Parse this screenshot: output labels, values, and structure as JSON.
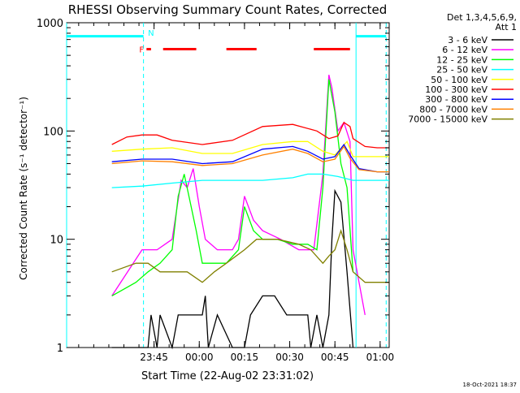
{
  "chart_data": {
    "type": "line",
    "title": "RHESSI Observing Summary Count Rates, Corrected",
    "xlabel": "Start Time (22-Aug-02 23:31:02)",
    "ylabel": "Corrected Count Rate (s⁻¹ detector⁻¹)",
    "y_scale": "log",
    "ylim": [
      1,
      1000
    ],
    "xlim": [
      -15,
      92
    ],
    "x_ticks": [
      {
        "t": 14,
        "label": "23:45"
      },
      {
        "t": 29,
        "label": "00:00"
      },
      {
        "t": 44,
        "label": "00:15"
      },
      {
        "t": 59,
        "label": "00:30"
      },
      {
        "t": 74,
        "label": "00:45"
      },
      {
        "t": 89,
        "label": "01:00"
      }
    ],
    "y_ticks": [
      {
        "v": 1,
        "label": "1"
      },
      {
        "v": 10,
        "label": "10"
      },
      {
        "v": 100,
        "label": "100"
      },
      {
        "v": 1000,
        "label": "1000"
      }
    ],
    "legend_header": [
      "Det 1,3,4,5,6,9,",
      "Att 1"
    ],
    "legend_position": "right",
    "series": [
      {
        "name": "3 - 6 keV",
        "color": "#000000",
        "points": [
          [
            0,
            1
          ],
          [
            12,
            1
          ],
          [
            13,
            2
          ],
          [
            15,
            1
          ],
          [
            16,
            2
          ],
          [
            20,
            1
          ],
          [
            22,
            2
          ],
          [
            30,
            2
          ],
          [
            31,
            3
          ],
          [
            32,
            1
          ],
          [
            35,
            2
          ],
          [
            40,
            1
          ],
          [
            44,
            1
          ],
          [
            46,
            2
          ],
          [
            50,
            3
          ],
          [
            54,
            3
          ],
          [
            58,
            2
          ],
          [
            62,
            2
          ],
          [
            65,
            2
          ],
          [
            66,
            1
          ],
          [
            68,
            2
          ],
          [
            70,
            1
          ],
          [
            72,
            2
          ],
          [
            73,
            10
          ],
          [
            74,
            28
          ],
          [
            76,
            22
          ],
          [
            78,
            5
          ],
          [
            80,
            1
          ]
        ]
      },
      {
        "name": "6 - 12 keV",
        "color": "#ff00ff",
        "points": [
          [
            0,
            3
          ],
          [
            10,
            8
          ],
          [
            12,
            8
          ],
          [
            15,
            8
          ],
          [
            20,
            10
          ],
          [
            23,
            35
          ],
          [
            25,
            30
          ],
          [
            27,
            45
          ],
          [
            29,
            20
          ],
          [
            31,
            10
          ],
          [
            35,
            8
          ],
          [
            40,
            8
          ],
          [
            42,
            10
          ],
          [
            44,
            25
          ],
          [
            47,
            15
          ],
          [
            50,
            12
          ],
          [
            56,
            10
          ],
          [
            62,
            8
          ],
          [
            67,
            8
          ],
          [
            70,
            40
          ],
          [
            72,
            330
          ],
          [
            73,
            250
          ],
          [
            75,
            100
          ],
          [
            77,
            120
          ],
          [
            79,
            80
          ],
          [
            80,
            8
          ],
          [
            82,
            4
          ],
          [
            84,
            2
          ]
        ]
      },
      {
        "name": "12 - 25 keV",
        "color": "#00ff00",
        "points": [
          [
            0,
            3
          ],
          [
            8,
            4
          ],
          [
            12,
            5
          ],
          [
            16,
            6
          ],
          [
            20,
            8
          ],
          [
            22,
            25
          ],
          [
            24,
            40
          ],
          [
            26,
            22
          ],
          [
            28,
            12
          ],
          [
            30,
            6
          ],
          [
            34,
            6
          ],
          [
            38,
            6
          ],
          [
            42,
            8
          ],
          [
            44,
            20
          ],
          [
            47,
            12
          ],
          [
            50,
            10
          ],
          [
            55,
            10
          ],
          [
            60,
            9
          ],
          [
            65,
            9
          ],
          [
            68,
            8
          ],
          [
            70,
            30
          ],
          [
            72,
            300
          ],
          [
            74,
            150
          ],
          [
            76,
            50
          ],
          [
            78,
            30
          ],
          [
            80,
            5
          ]
        ]
      },
      {
        "name": "25 - 50 keV",
        "color": "#00ffff",
        "points": [
          [
            0,
            30
          ],
          [
            10,
            31
          ],
          [
            20,
            33
          ],
          [
            30,
            35
          ],
          [
            40,
            35
          ],
          [
            50,
            35
          ],
          [
            60,
            37
          ],
          [
            65,
            40
          ],
          [
            70,
            40
          ],
          [
            75,
            38
          ],
          [
            80,
            35
          ],
          [
            88,
            35
          ],
          [
            92,
            35
          ]
        ]
      },
      {
        "name": "50 - 100 keV",
        "color": "#ffff00",
        "points": [
          [
            0,
            65
          ],
          [
            10,
            68
          ],
          [
            20,
            70
          ],
          [
            30,
            62
          ],
          [
            40,
            62
          ],
          [
            50,
            75
          ],
          [
            60,
            80
          ],
          [
            65,
            80
          ],
          [
            70,
            65
          ],
          [
            74,
            60
          ],
          [
            78,
            80
          ],
          [
            80,
            58
          ],
          [
            88,
            58
          ],
          [
            92,
            58
          ]
        ]
      },
      {
        "name": "100 - 300 keV",
        "color": "#ff0000",
        "points": [
          [
            0,
            75
          ],
          [
            5,
            88
          ],
          [
            10,
            92
          ],
          [
            15,
            92
          ],
          [
            20,
            82
          ],
          [
            30,
            75
          ],
          [
            40,
            82
          ],
          [
            50,
            110
          ],
          [
            60,
            115
          ],
          [
            68,
            100
          ],
          [
            72,
            85
          ],
          [
            75,
            90
          ],
          [
            77,
            120
          ],
          [
            79,
            110
          ],
          [
            80,
            85
          ],
          [
            84,
            72
          ],
          [
            88,
            70
          ],
          [
            92,
            70
          ]
        ]
      },
      {
        "name": "300 - 800 keV",
        "color": "#0000ff",
        "points": [
          [
            0,
            52
          ],
          [
            10,
            55
          ],
          [
            20,
            55
          ],
          [
            30,
            50
          ],
          [
            40,
            52
          ],
          [
            50,
            68
          ],
          [
            60,
            72
          ],
          [
            65,
            65
          ],
          [
            70,
            55
          ],
          [
            74,
            58
          ],
          [
            77,
            75
          ],
          [
            79,
            60
          ],
          [
            82,
            45
          ],
          [
            88,
            42
          ],
          [
            92,
            42
          ]
        ]
      },
      {
        "name": "800 - 7000 keV",
        "color": "#ff8000",
        "points": [
          [
            0,
            50
          ],
          [
            10,
            53
          ],
          [
            20,
            52
          ],
          [
            30,
            48
          ],
          [
            40,
            50
          ],
          [
            50,
            60
          ],
          [
            60,
            68
          ],
          [
            65,
            62
          ],
          [
            70,
            52
          ],
          [
            74,
            55
          ],
          [
            77,
            72
          ],
          [
            79,
            56
          ],
          [
            82,
            44
          ],
          [
            88,
            42
          ],
          [
            92,
            42
          ]
        ]
      },
      {
        "name": "7000 - 15000 keV",
        "color": "#808000",
        "points": [
          [
            0,
            5
          ],
          [
            8,
            6
          ],
          [
            12,
            6
          ],
          [
            16,
            5
          ],
          [
            20,
            5
          ],
          [
            25,
            5
          ],
          [
            30,
            4
          ],
          [
            34,
            5
          ],
          [
            38,
            6
          ],
          [
            44,
            8
          ],
          [
            48,
            10
          ],
          [
            55,
            10
          ],
          [
            62,
            9
          ],
          [
            66,
            8
          ],
          [
            70,
            6
          ],
          [
            72,
            7
          ],
          [
            74,
            8
          ],
          [
            76,
            12
          ],
          [
            78,
            8
          ],
          [
            80,
            5
          ],
          [
            84,
            4
          ],
          [
            88,
            4
          ],
          [
            92,
            4
          ]
        ]
      }
    ],
    "vertical_lines": [
      {
        "t": -15,
        "color": "#00ffff",
        "style": "solid"
      },
      {
        "t": 10.5,
        "color": "#00ffff",
        "style": "dashed"
      },
      {
        "t": 81,
        "color": "#00ffff",
        "style": "solid"
      },
      {
        "t": 91,
        "color": "#00ffff",
        "style": "dashed"
      }
    ],
    "state_bars": [
      {
        "label": "",
        "color": "#00ffff",
        "v": 750,
        "segments": [
          [
            -15,
            10.5
          ],
          [
            81,
            91
          ]
        ]
      },
      {
        "label": "F",
        "color": "#ff0000",
        "v": 570,
        "segments": [
          [
            11.5,
            13
          ],
          [
            17,
            28
          ],
          [
            38,
            48
          ],
          [
            67,
            79
          ]
        ]
      }
    ],
    "state_letters": [
      {
        "label": "N",
        "color": "#00ffff",
        "t": 12,
        "v": 800
      }
    ],
    "footer_timestamp": "18-Oct-2021 18:37"
  }
}
